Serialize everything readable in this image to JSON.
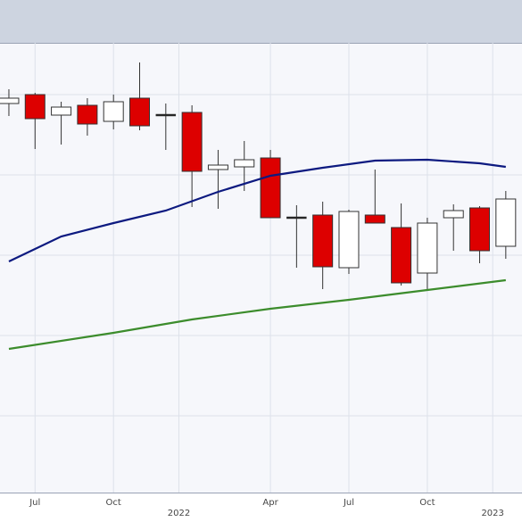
{
  "chart_data": {
    "type": "candlestick",
    "x": [
      0,
      1,
      2,
      3,
      4,
      5,
      6,
      7,
      8,
      9,
      10,
      11,
      12,
      13,
      14,
      15,
      16,
      17,
      18,
      19
    ],
    "open": [
      436,
      446,
      423,
      434,
      416,
      442,
      423,
      426,
      362,
      365,
      375,
      308,
      311,
      252,
      311,
      297,
      246,
      308,
      319,
      276
    ],
    "high": [
      452,
      448,
      438,
      442,
      446,
      482,
      436,
      434,
      384,
      394,
      384,
      322,
      326,
      317,
      362,
      324,
      308,
      323,
      321,
      338
    ],
    "low": [
      422,
      385,
      390,
      400,
      407,
      406,
      384,
      320,
      318,
      338,
      308,
      252,
      228,
      245,
      302,
      232,
      228,
      271,
      257,
      262
    ],
    "close": [
      442,
      419,
      432,
      413,
      438,
      411,
      423,
      360,
      367,
      373,
      308,
      308,
      253,
      315,
      302,
      235,
      302,
      316,
      271,
      329
    ],
    "up_color": "#ffffff",
    "down_color": "#dd0000",
    "lines": [
      {
        "color": "#0d1a80",
        "x": [
          0,
          2,
          4,
          6,
          8,
          10,
          12,
          14,
          16,
          18,
          19
        ],
        "values": [
          259,
          287,
          302,
          316,
          337,
          355,
          364,
          372,
          373,
          369,
          365
        ]
      },
      {
        "color": "#3c8c2c",
        "x": [
          0,
          4,
          7,
          10,
          13,
          16,
          19
        ],
        "values": [
          161,
          179,
          194,
          206,
          216,
          227,
          238
        ]
      }
    ],
    "xlim": [
      -0.34,
      19.62
    ],
    "xticks": [
      {
        "value": 1,
        "label": "Jul"
      },
      {
        "value": 4,
        "label": "Oct"
      },
      {
        "value": 6.5,
        "label": "2022"
      },
      {
        "value": 10,
        "label": "Apr"
      },
      {
        "value": 13,
        "label": "Jul"
      },
      {
        "value": 16,
        "label": "Oct"
      },
      {
        "value": 18.5,
        "label": "2023"
      }
    ],
    "ylim": [
      0,
      504
    ],
    "yticks": [
      86,
      176,
      266,
      356,
      446
    ],
    "grid": true
  }
}
